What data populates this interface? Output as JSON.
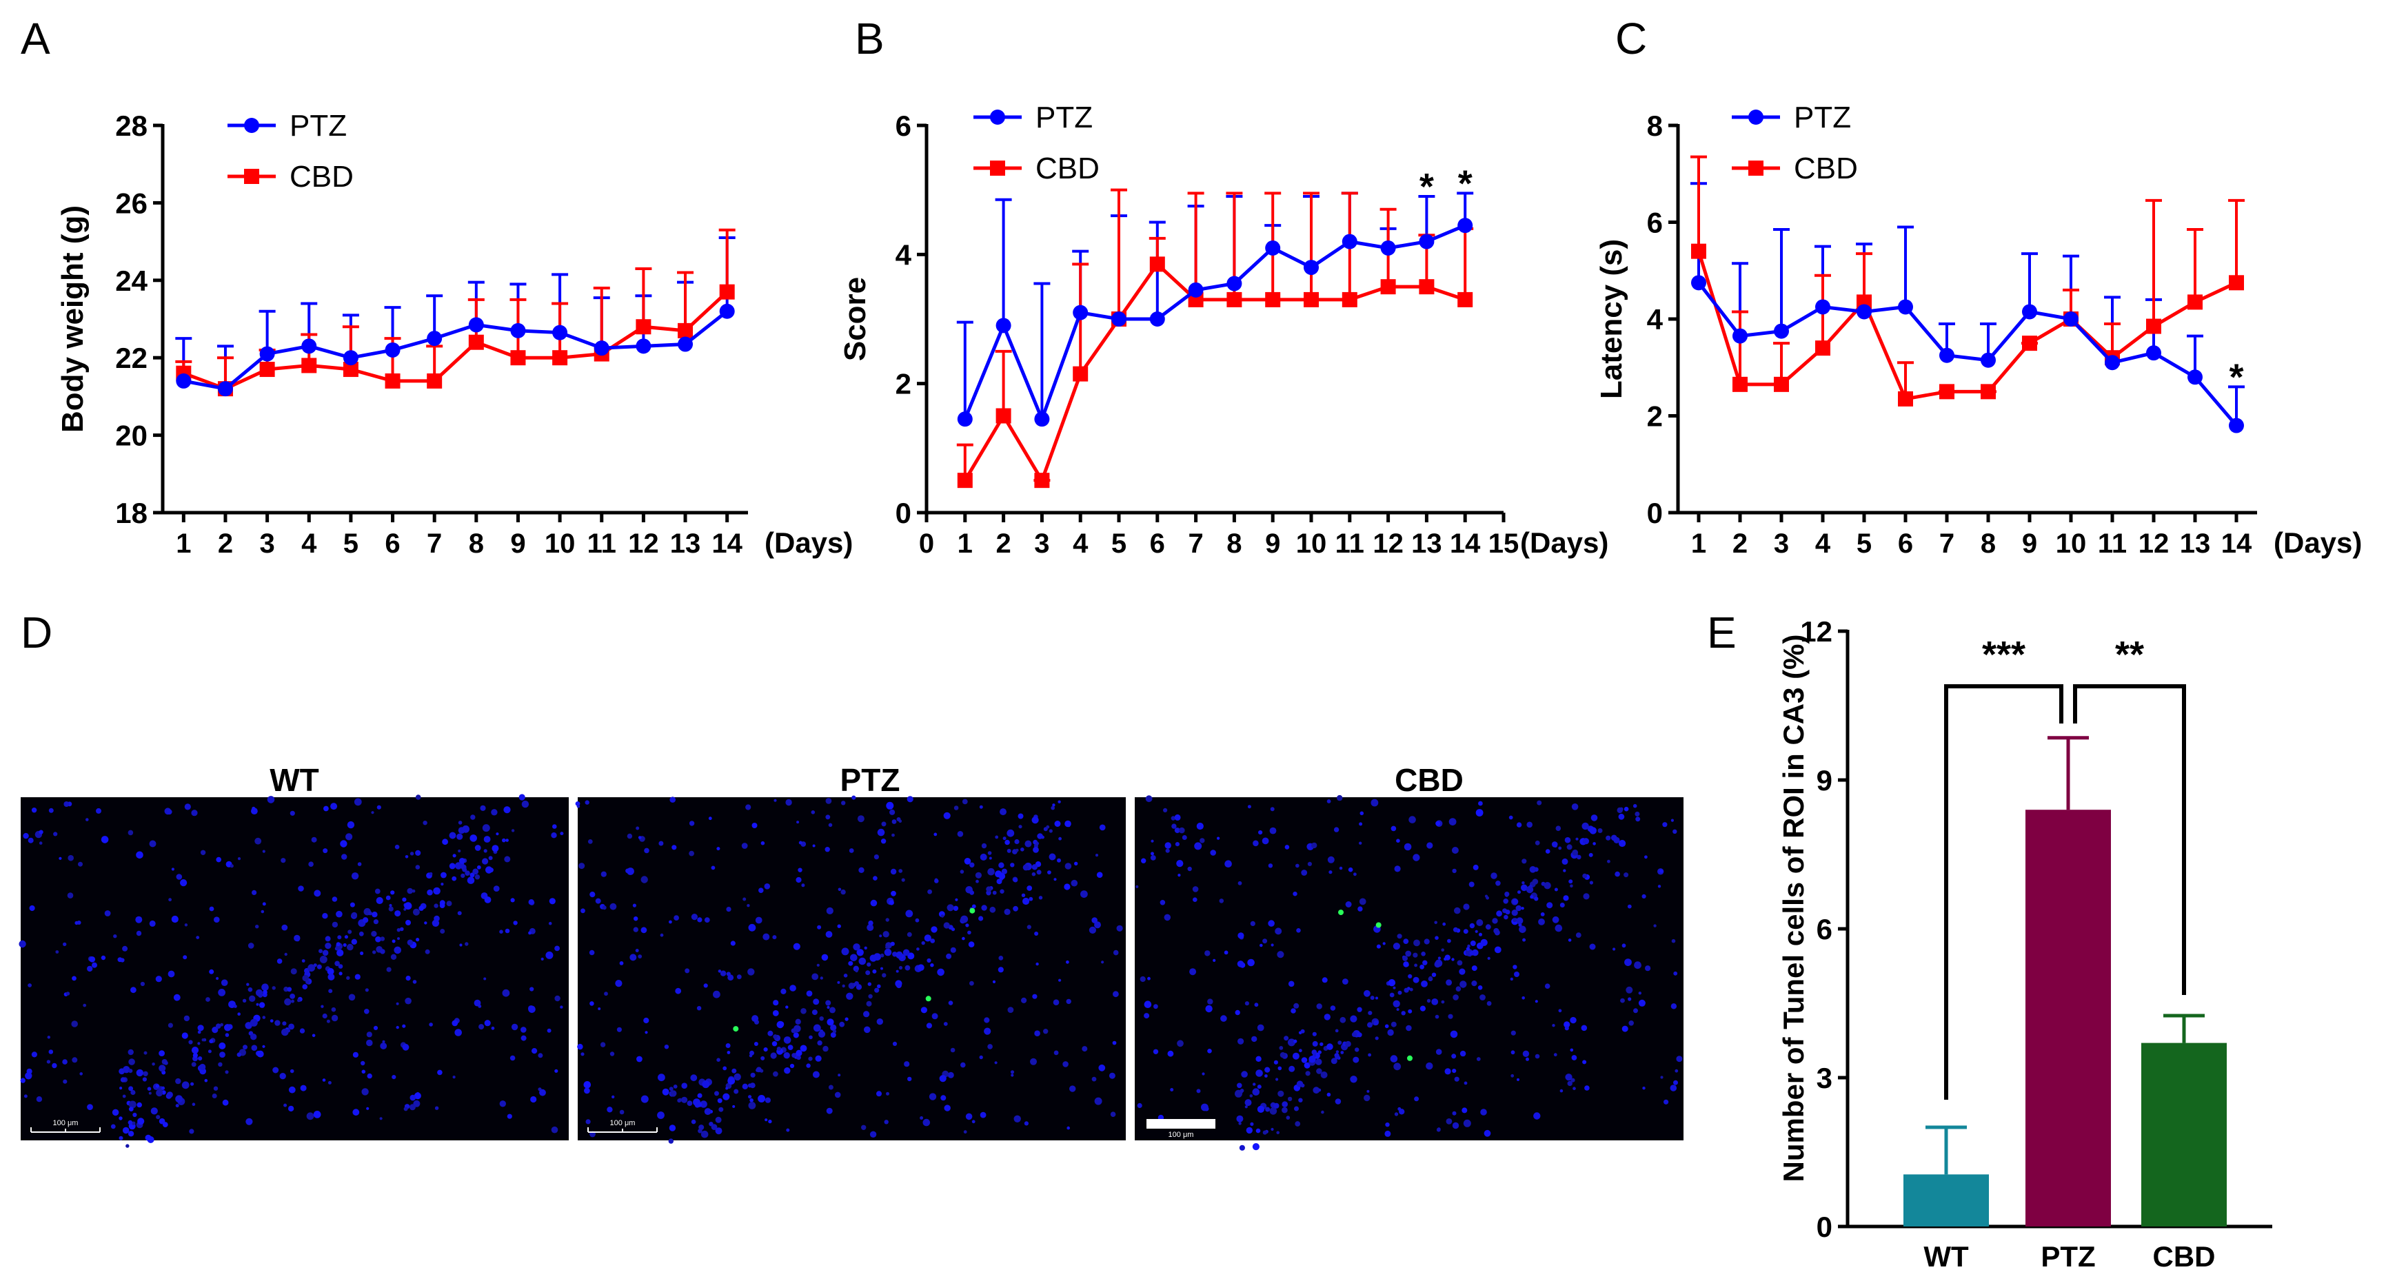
{
  "chart_data": [
    {
      "id": "A",
      "type": "line",
      "panel_label": "A",
      "ylabel": "Body weight (g)",
      "xunit": "(Days)",
      "x": [
        1,
        2,
        3,
        4,
        5,
        6,
        7,
        8,
        9,
        10,
        11,
        12,
        13,
        14
      ],
      "xlim": [
        0.5,
        14.5
      ],
      "ylim": [
        18,
        28
      ],
      "yticks": [
        18,
        20,
        22,
        24,
        26,
        28
      ],
      "xticks": [
        1,
        2,
        3,
        4,
        5,
        6,
        7,
        8,
        9,
        10,
        11,
        12,
        13,
        14
      ],
      "legend": "top-left",
      "series": [
        {
          "name": "PTZ",
          "color": "#0000ff",
          "marker": "circle",
          "values": [
            21.4,
            21.2,
            22.1,
            22.3,
            22.0,
            22.2,
            22.5,
            22.85,
            22.7,
            22.65,
            22.25,
            22.3,
            22.35,
            23.2
          ],
          "err": [
            1.1,
            1.1,
            1.1,
            1.1,
            1.1,
            1.1,
            1.1,
            1.1,
            1.2,
            1.5,
            1.3,
            1.3,
            1.6,
            1.9
          ]
        },
        {
          "name": "CBD",
          "color": "#ff0000",
          "marker": "square",
          "values": [
            21.6,
            21.2,
            21.7,
            21.8,
            21.7,
            21.4,
            21.4,
            22.4,
            22.0,
            22.0,
            22.1,
            22.8,
            22.7,
            23.7
          ],
          "err": [
            0.3,
            0.8,
            0.5,
            0.8,
            1.1,
            1.1,
            0.9,
            1.1,
            1.5,
            1.4,
            1.7,
            1.5,
            1.5,
            1.6
          ]
        }
      ],
      "annotations": []
    },
    {
      "id": "B",
      "type": "line",
      "panel_label": "B",
      "ylabel": "Score",
      "xunit": "(Days)",
      "x": [
        1,
        2,
        3,
        4,
        5,
        6,
        7,
        8,
        9,
        10,
        11,
        12,
        13,
        14
      ],
      "xlim": [
        0,
        15
      ],
      "ylim": [
        0,
        6
      ],
      "yticks": [
        0,
        2,
        4,
        6
      ],
      "xticks": [
        0,
        1,
        2,
        3,
        4,
        5,
        6,
        7,
        8,
        9,
        10,
        11,
        12,
        13,
        14,
        15
      ],
      "legend": "top-left",
      "series": [
        {
          "name": "PTZ",
          "color": "#0000ff",
          "marker": "circle",
          "values": [
            1.45,
            2.9,
            1.45,
            3.1,
            3.0,
            3.0,
            3.45,
            3.55,
            4.1,
            3.8,
            4.2,
            4.1,
            4.2,
            4.45
          ],
          "err": [
            1.5,
            1.95,
            2.1,
            0.95,
            1.6,
            1.5,
            1.3,
            1.35,
            0.35,
            1.1,
            0.75,
            0.3,
            0.7,
            0.5
          ]
        },
        {
          "name": "CBD",
          "color": "#ff0000",
          "marker": "square",
          "values": [
            0.5,
            1.5,
            0.5,
            2.15,
            3.0,
            3.85,
            3.3,
            3.3,
            3.3,
            3.3,
            3.3,
            3.5,
            3.5,
            3.3
          ],
          "err": [
            0.55,
            1.0,
            0.0,
            1.7,
            2.0,
            0.4,
            1.65,
            1.65,
            1.65,
            1.65,
            1.65,
            1.2,
            0.8,
            1.1
          ]
        }
      ],
      "annotations": [
        {
          "day": 13,
          "text": "*"
        },
        {
          "day": 14,
          "text": "*"
        }
      ]
    },
    {
      "id": "C",
      "type": "line",
      "panel_label": "C",
      "ylabel": "Latency (s)",
      "xunit": "(Days)",
      "x": [
        1,
        2,
        3,
        4,
        5,
        6,
        7,
        8,
        9,
        10,
        11,
        12,
        13,
        14
      ],
      "xlim": [
        0.5,
        14.5
      ],
      "ylim": [
        0,
        8
      ],
      "yticks": [
        0,
        2,
        4,
        6,
        8
      ],
      "xticks": [
        1,
        2,
        3,
        4,
        5,
        6,
        7,
        8,
        9,
        10,
        11,
        12,
        13,
        14
      ],
      "legend": "top-left",
      "series": [
        {
          "name": "PTZ",
          "color": "#0000ff",
          "marker": "circle",
          "values": [
            4.75,
            3.65,
            3.75,
            4.25,
            4.15,
            4.25,
            3.25,
            3.15,
            4.15,
            4.0,
            3.1,
            3.3,
            2.8,
            1.8
          ],
          "err": [
            2.05,
            1.5,
            2.1,
            1.25,
            1.4,
            1.65,
            0.65,
            0.75,
            1.2,
            1.3,
            1.35,
            1.1,
            0.85,
            0.8
          ]
        },
        {
          "name": "CBD",
          "color": "#ff0000",
          "marker": "square",
          "values": [
            5.4,
            2.65,
            2.65,
            3.4,
            4.35,
            2.35,
            2.5,
            2.5,
            3.5,
            4.0,
            3.2,
            3.85,
            4.35,
            4.75
          ],
          "err": [
            1.95,
            1.5,
            0.85,
            1.5,
            1.0,
            0.75,
            0.0,
            0.0,
            0.0,
            0.6,
            0.7,
            2.6,
            1.5,
            1.7
          ]
        }
      ],
      "annotations": [
        {
          "day": 14,
          "text": "*"
        }
      ]
    },
    {
      "id": "E",
      "type": "bar",
      "panel_label": "E",
      "ylabel": "Number of Tunel cells of ROI in CA3 (%)",
      "categories": [
        "WT",
        "PTZ",
        "CBD"
      ],
      "values": [
        1.05,
        8.4,
        3.7
      ],
      "err": [
        0.95,
        1.45,
        0.55
      ],
      "colors": [
        "#13879a",
        "#7f0042",
        "#14661e"
      ],
      "ylim": [
        0,
        12
      ],
      "yticks": [
        0,
        3,
        6,
        9,
        12
      ],
      "significance": [
        {
          "from": "WT",
          "to": "PTZ",
          "text": "***"
        },
        {
          "from": "PTZ",
          "to": "CBD",
          "text": "**"
        }
      ]
    }
  ],
  "panel_d": {
    "label": "D",
    "images": [
      {
        "title": "WT",
        "scale_label": "100 μm",
        "scale_style": "ruler"
      },
      {
        "title": "PTZ",
        "scale_label": "100 μm",
        "scale_style": "ruler"
      },
      {
        "title": "CBD",
        "scale_label": "100 μm",
        "scale_style": "bar"
      }
    ]
  }
}
